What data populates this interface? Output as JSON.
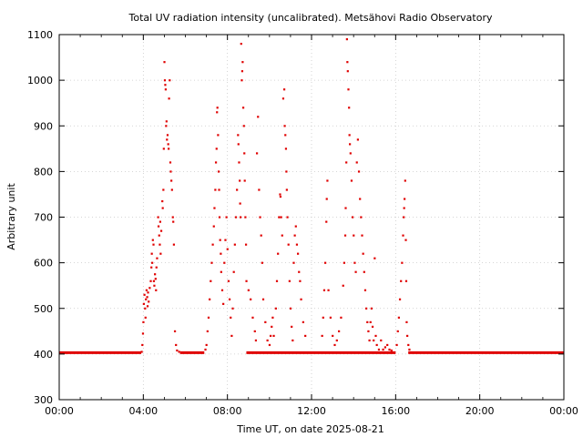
{
  "chart_data": {
    "type": "scatter",
    "title": "Total UV radiation intensity (uncalibrated). Metsähovi Radio Observatory",
    "xlabel": "Time UT, on date 2025-08-21",
    "ylabel": "Arbitrary unit",
    "xlim": [
      0,
      24
    ],
    "ylim": [
      300,
      1100
    ],
    "x_ticks": [
      0,
      4,
      8,
      12,
      16,
      20,
      24
    ],
    "x_tick_labels": [
      "00:00",
      "04:00",
      "08:00",
      "12:00",
      "16:00",
      "20:00",
      "00:00"
    ],
    "y_ticks": [
      300,
      400,
      500,
      600,
      700,
      800,
      900,
      1000,
      1100
    ],
    "y_tick_labels": [
      "300",
      "400",
      "500",
      "600",
      "700",
      "800",
      "900",
      "1000",
      "1100"
    ],
    "grid": true,
    "marker_color": "#e00000",
    "baseline_segments": [
      {
        "x_start": 0.0,
        "x_end": 3.9,
        "y": 403
      },
      {
        "x_start": 5.75,
        "x_end": 6.9,
        "y": 403
      },
      {
        "x_start": 8.9,
        "x_end": 16.0,
        "y": 403
      },
      {
        "x_start": 16.6,
        "x_end": 24.0,
        "y": 403
      }
    ],
    "series": [
      {
        "values": [
          [
            3.92,
            405
          ],
          [
            3.95,
            420
          ],
          [
            3.98,
            445
          ],
          [
            4.0,
            470
          ],
          [
            4.02,
            510
          ],
          [
            4.05,
            530
          ],
          [
            4.08,
            500
          ],
          [
            4.1,
            480
          ],
          [
            4.12,
            520
          ],
          [
            4.15,
            540
          ],
          [
            4.18,
            525
          ],
          [
            4.2,
            505
          ],
          [
            4.22,
            535
          ],
          [
            4.25,
            515
          ],
          [
            4.3,
            545
          ],
          [
            4.35,
            560
          ],
          [
            4.38,
            590
          ],
          [
            4.4,
            620
          ],
          [
            4.42,
            600
          ],
          [
            4.45,
            650
          ],
          [
            4.48,
            640
          ],
          [
            4.5,
            560
          ],
          [
            4.52,
            550
          ],
          [
            4.55,
            575
          ],
          [
            4.58,
            565
          ],
          [
            4.6,
            540
          ],
          [
            4.62,
            590
          ],
          [
            4.65,
            610
          ],
          [
            4.7,
            700
          ],
          [
            4.72,
            680
          ],
          [
            4.75,
            660
          ],
          [
            4.78,
            640
          ],
          [
            4.8,
            690
          ],
          [
            4.82,
            620
          ],
          [
            4.85,
            670
          ],
          [
            4.9,
            735
          ],
          [
            4.92,
            720
          ],
          [
            4.95,
            760
          ],
          [
            4.97,
            850
          ],
          [
            5.0,
            1040
          ],
          [
            5.02,
            1000
          ],
          [
            5.04,
            990
          ],
          [
            5.06,
            980
          ],
          [
            5.08,
            900
          ],
          [
            5.1,
            910
          ],
          [
            5.12,
            870
          ],
          [
            5.15,
            880
          ],
          [
            5.18,
            860
          ],
          [
            5.2,
            850
          ],
          [
            5.22,
            960
          ],
          [
            5.25,
            1000
          ],
          [
            5.28,
            820
          ],
          [
            5.3,
            800
          ],
          [
            5.33,
            780
          ],
          [
            5.36,
            760
          ],
          [
            5.4,
            700
          ],
          [
            5.42,
            690
          ],
          [
            5.45,
            640
          ],
          [
            5.5,
            450
          ],
          [
            5.55,
            420
          ],
          [
            5.6,
            408
          ],
          [
            5.7,
            405
          ],
          [
            6.95,
            410
          ],
          [
            7.0,
            420
          ],
          [
            7.05,
            450
          ],
          [
            7.1,
            480
          ],
          [
            7.15,
            520
          ],
          [
            7.2,
            560
          ],
          [
            7.25,
            600
          ],
          [
            7.3,
            640
          ],
          [
            7.35,
            680
          ],
          [
            7.38,
            720
          ],
          [
            7.42,
            760
          ],
          [
            7.45,
            820
          ],
          [
            7.48,
            850
          ],
          [
            7.5,
            930
          ],
          [
            7.52,
            940
          ],
          [
            7.55,
            880
          ],
          [
            7.58,
            800
          ],
          [
            7.6,
            760
          ],
          [
            7.62,
            700
          ],
          [
            7.65,
            650
          ],
          [
            7.68,
            620
          ],
          [
            7.7,
            580
          ],
          [
            7.75,
            540
          ],
          [
            7.8,
            510
          ],
          [
            7.85,
            600
          ],
          [
            7.9,
            650
          ],
          [
            7.95,
            700
          ],
          [
            8.0,
            630
          ],
          [
            8.05,
            560
          ],
          [
            8.1,
            520
          ],
          [
            8.15,
            480
          ],
          [
            8.2,
            440
          ],
          [
            8.25,
            500
          ],
          [
            8.3,
            580
          ],
          [
            8.35,
            640
          ],
          [
            8.4,
            700
          ],
          [
            8.45,
            760
          ],
          [
            8.5,
            880
          ],
          [
            8.52,
            860
          ],
          [
            8.55,
            820
          ],
          [
            8.58,
            780
          ],
          [
            8.6,
            730
          ],
          [
            8.62,
            700
          ],
          [
            8.65,
            1080
          ],
          [
            8.68,
            1000
          ],
          [
            8.7,
            1020
          ],
          [
            8.72,
            1040
          ],
          [
            8.75,
            940
          ],
          [
            8.78,
            900
          ],
          [
            8.8,
            840
          ],
          [
            8.82,
            780
          ],
          [
            8.85,
            700
          ],
          [
            8.88,
            640
          ],
          [
            8.9,
            560
          ],
          [
            9.0,
            540
          ],
          [
            9.1,
            520
          ],
          [
            9.2,
            480
          ],
          [
            9.3,
            450
          ],
          [
            9.35,
            430
          ],
          [
            9.4,
            840
          ],
          [
            9.45,
            920
          ],
          [
            9.5,
            760
          ],
          [
            9.55,
            700
          ],
          [
            9.6,
            660
          ],
          [
            9.65,
            600
          ],
          [
            9.7,
            520
          ],
          [
            9.8,
            470
          ],
          [
            9.9,
            430
          ],
          [
            10.0,
            420
          ],
          [
            10.05,
            440
          ],
          [
            10.1,
            460
          ],
          [
            10.15,
            480
          ],
          [
            10.2,
            440
          ],
          [
            10.3,
            500
          ],
          [
            10.35,
            560
          ],
          [
            10.4,
            620
          ],
          [
            10.45,
            700
          ],
          [
            10.5,
            750
          ],
          [
            10.52,
            745
          ],
          [
            10.55,
            700
          ],
          [
            10.6,
            660
          ],
          [
            10.65,
            960
          ],
          [
            10.7,
            980
          ],
          [
            10.72,
            900
          ],
          [
            10.75,
            880
          ],
          [
            10.78,
            850
          ],
          [
            10.8,
            800
          ],
          [
            10.82,
            760
          ],
          [
            10.85,
            700
          ],
          [
            10.9,
            640
          ],
          [
            10.95,
            560
          ],
          [
            11.0,
            500
          ],
          [
            11.05,
            460
          ],
          [
            11.1,
            430
          ],
          [
            11.15,
            600
          ],
          [
            11.2,
            660
          ],
          [
            11.25,
            680
          ],
          [
            11.3,
            640
          ],
          [
            11.35,
            620
          ],
          [
            11.4,
            580
          ],
          [
            11.45,
            560
          ],
          [
            11.5,
            520
          ],
          [
            11.6,
            470
          ],
          [
            11.7,
            440
          ],
          [
            12.5,
            440
          ],
          [
            12.55,
            480
          ],
          [
            12.6,
            540
          ],
          [
            12.65,
            600
          ],
          [
            12.7,
            690
          ],
          [
            12.72,
            740
          ],
          [
            12.75,
            780
          ],
          [
            12.8,
            540
          ],
          [
            12.9,
            480
          ],
          [
            13.0,
            440
          ],
          [
            13.1,
            420
          ],
          [
            13.2,
            430
          ],
          [
            13.3,
            450
          ],
          [
            13.4,
            480
          ],
          [
            13.5,
            550
          ],
          [
            13.55,
            600
          ],
          [
            13.6,
            660
          ],
          [
            13.62,
            720
          ],
          [
            13.65,
            820
          ],
          [
            13.68,
            1090
          ],
          [
            13.7,
            1040
          ],
          [
            13.72,
            1020
          ],
          [
            13.75,
            980
          ],
          [
            13.78,
            940
          ],
          [
            13.8,
            880
          ],
          [
            13.82,
            860
          ],
          [
            13.85,
            840
          ],
          [
            13.9,
            780
          ],
          [
            13.95,
            700
          ],
          [
            14.0,
            660
          ],
          [
            14.05,
            600
          ],
          [
            14.1,
            580
          ],
          [
            14.15,
            820
          ],
          [
            14.2,
            870
          ],
          [
            14.25,
            800
          ],
          [
            14.3,
            740
          ],
          [
            14.35,
            700
          ],
          [
            14.4,
            660
          ],
          [
            14.45,
            620
          ],
          [
            14.5,
            580
          ],
          [
            14.55,
            540
          ],
          [
            14.6,
            500
          ],
          [
            14.65,
            470
          ],
          [
            14.7,
            450
          ],
          [
            14.75,
            430
          ],
          [
            14.8,
            470
          ],
          [
            14.85,
            500
          ],
          [
            14.9,
            460
          ],
          [
            14.95,
            430
          ],
          [
            15.0,
            610
          ],
          [
            15.05,
            440
          ],
          [
            15.1,
            420
          ],
          [
            15.2,
            410
          ],
          [
            15.3,
            430
          ],
          [
            15.4,
            410
          ],
          [
            15.5,
            415
          ],
          [
            15.6,
            420
          ],
          [
            15.7,
            410
          ],
          [
            15.8,
            408
          ],
          [
            16.05,
            420
          ],
          [
            16.1,
            450
          ],
          [
            16.15,
            480
          ],
          [
            16.2,
            520
          ],
          [
            16.25,
            560
          ],
          [
            16.3,
            600
          ],
          [
            16.35,
            660
          ],
          [
            16.38,
            700
          ],
          [
            16.4,
            720
          ],
          [
            16.42,
            740
          ],
          [
            16.45,
            780
          ],
          [
            16.48,
            650
          ],
          [
            16.5,
            560
          ],
          [
            16.52,
            470
          ],
          [
            16.55,
            440
          ],
          [
            16.6,
            420
          ],
          [
            16.65,
            410
          ]
        ]
      }
    ]
  }
}
